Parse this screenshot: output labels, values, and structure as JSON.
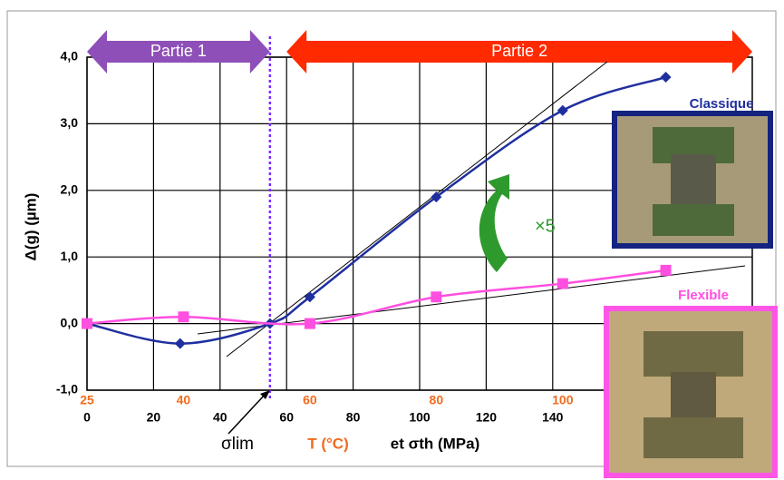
{
  "chart_data": {
    "type": "line",
    "y_label": "Δ(g) (µm)",
    "x_label_parts": [
      "σlim",
      "T (°C)",
      "et σth (MPa)"
    ],
    "xlim": [
      0,
      200
    ],
    "ylim": [
      -1,
      4
    ],
    "xticks": [
      0,
      20,
      40,
      60,
      80,
      100,
      120,
      140
    ],
    "yticks": [
      {
        "value": -1,
        "label": "-1,0"
      },
      {
        "value": 0,
        "label": "0,0"
      },
      {
        "value": 1,
        "label": "1,0"
      },
      {
        "value": 2,
        "label": "2,0"
      },
      {
        "value": 3,
        "label": "3,0"
      },
      {
        "value": 4,
        "label": "4,0"
      }
    ],
    "temperature_ticks": [
      {
        "value": 0,
        "label": "25"
      },
      {
        "value": 29,
        "label": "40"
      },
      {
        "value": 67,
        "label": "60"
      },
      {
        "value": 105,
        "label": "80"
      },
      {
        "value": 143,
        "label": "100"
      }
    ],
    "grid": true,
    "limit_x": 55,
    "phases": [
      {
        "label": "Partie 1",
        "from": 0,
        "to": 55,
        "color": "#8e4fb8"
      },
      {
        "label": "Partie 2",
        "from": 60,
        "to": 200,
        "color": "#ff2a00"
      }
    ],
    "ratio_label": "×5",
    "series": [
      {
        "name": "Classique",
        "color": "#1f2f9f",
        "marker": "diamond",
        "x": [
          0,
          28,
          55,
          67,
          105,
          143,
          174
        ],
        "values": [
          0,
          -0.3,
          0,
          0.4,
          1.9,
          3.2,
          3.7
        ]
      },
      {
        "name": "Flexible",
        "color": "#ff4fe0",
        "marker": "square",
        "x": [
          0,
          29,
          67,
          105,
          143,
          174
        ],
        "values": [
          0,
          0.1,
          0,
          0.4,
          0.6,
          0.8
        ]
      }
    ]
  }
}
